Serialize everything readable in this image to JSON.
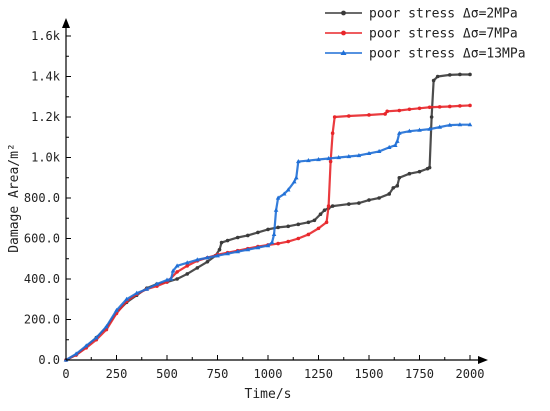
{
  "chart_data": {
    "type": "line",
    "title": "",
    "xlabel": "Time/s",
    "ylabel": "Damage Area/m²",
    "xlim": [
      0,
      2000
    ],
    "ylim": [
      0,
      1600
    ],
    "x_ticks": [
      0,
      250,
      500,
      750,
      1000,
      1250,
      1500,
      1750,
      2000
    ],
    "x_tick_labels": [
      "0",
      "250",
      "500",
      "750",
      "1000",
      "1250",
      "1500",
      "1750",
      "2000"
    ],
    "y_ticks": [
      0,
      200,
      400,
      600,
      800,
      1000,
      1200,
      1400,
      1600
    ],
    "y_tick_labels": [
      "0.0",
      "200.0",
      "400.0",
      "600.0",
      "800.0",
      "1.0k",
      "1.2k",
      "1.4k",
      "1.6k"
    ],
    "grid": false,
    "legend_position": "top-right",
    "series": [
      {
        "name": "poor stress Δσ=2MPa",
        "color": "#3a3a3a",
        "marker": "circle",
        "x": [
          0,
          50,
          100,
          150,
          200,
          250,
          300,
          350,
          400,
          450,
          500,
          550,
          600,
          650,
          700,
          740,
          760,
          770,
          800,
          850,
          900,
          950,
          1000,
          1050,
          1100,
          1150,
          1200,
          1230,
          1260,
          1280,
          1300,
          1320,
          1400,
          1450,
          1500,
          1550,
          1600,
          1620,
          1640,
          1650,
          1700,
          1750,
          1790,
          1800,
          1810,
          1820,
          1840,
          1900,
          1950,
          2000
        ],
        "y": [
          0,
          25,
          65,
          110,
          160,
          235,
          285,
          320,
          355,
          375,
          385,
          400,
          425,
          455,
          485,
          515,
          545,
          580,
          590,
          605,
          615,
          630,
          645,
          655,
          660,
          670,
          680,
          690,
          720,
          740,
          750,
          760,
          770,
          775,
          790,
          800,
          820,
          850,
          860,
          900,
          920,
          930,
          945,
          950,
          1200,
          1380,
          1400,
          1408,
          1410,
          1410
        ]
      },
      {
        "name": "poor stress Δσ=7MPa",
        "color": "#e8262a",
        "marker": "circle",
        "x": [
          0,
          50,
          100,
          150,
          200,
          250,
          300,
          350,
          400,
          450,
          500,
          550,
          600,
          650,
          700,
          750,
          800,
          850,
          900,
          950,
          1000,
          1050,
          1100,
          1150,
          1200,
          1250,
          1290,
          1300,
          1310,
          1320,
          1330,
          1400,
          1500,
          1580,
          1590,
          1650,
          1700,
          1750,
          1800,
          1850,
          1900,
          1950,
          2000
        ],
        "y": [
          0,
          25,
          60,
          100,
          150,
          230,
          290,
          325,
          350,
          365,
          385,
          435,
          465,
          490,
          505,
          520,
          530,
          540,
          550,
          560,
          568,
          575,
          585,
          600,
          620,
          650,
          680,
          760,
          980,
          1120,
          1200,
          1205,
          1210,
          1215,
          1228,
          1232,
          1238,
          1243,
          1248,
          1250,
          1252,
          1255,
          1257
        ]
      },
      {
        "name": "poor stress Δσ=13MPa",
        "color": "#1f6fd6",
        "marker": "triangle",
        "x": [
          0,
          50,
          100,
          150,
          200,
          250,
          300,
          350,
          400,
          450,
          500,
          520,
          530,
          550,
          600,
          650,
          700,
          750,
          800,
          850,
          900,
          950,
          1000,
          1020,
          1030,
          1040,
          1050,
          1080,
          1100,
          1130,
          1140,
          1150,
          1200,
          1250,
          1300,
          1350,
          1400,
          1450,
          1500,
          1550,
          1600,
          1630,
          1640,
          1650,
          1700,
          1750,
          1800,
          1850,
          1900,
          1950,
          2000
        ],
        "y": [
          0,
          30,
          70,
          110,
          165,
          245,
          300,
          330,
          350,
          375,
          395,
          400,
          440,
          465,
          480,
          495,
          505,
          515,
          525,
          535,
          545,
          555,
          565,
          580,
          620,
          740,
          800,
          820,
          840,
          880,
          900,
          980,
          985,
          990,
          995,
          1000,
          1005,
          1010,
          1020,
          1030,
          1050,
          1060,
          1080,
          1120,
          1130,
          1135,
          1140,
          1150,
          1160,
          1162,
          1162
        ]
      }
    ]
  }
}
